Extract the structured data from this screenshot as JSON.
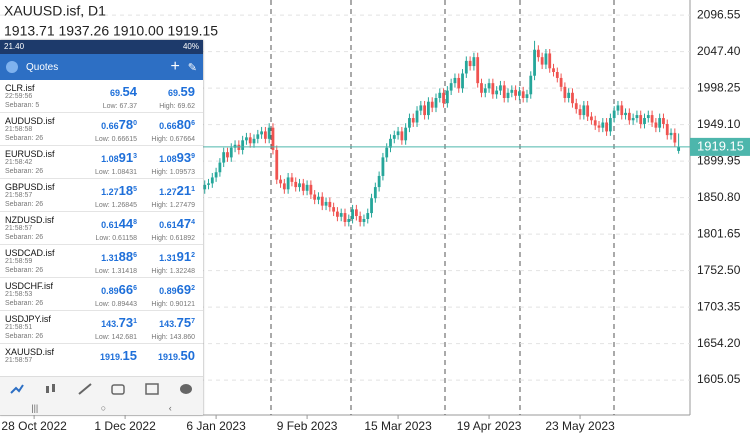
{
  "chart_data": {
    "type": "candlestick",
    "title": "XAUUSD.isf, D1",
    "ohlc_text": "1913.71 1937.26 1910.00 1919.15",
    "x": [
      44,
      45,
      46,
      47,
      48,
      49,
      50,
      51,
      52,
      53,
      54,
      55,
      56,
      57,
      58,
      59,
      60,
      61,
      62,
      63,
      64,
      65,
      66,
      67,
      68,
      69,
      70,
      71,
      72,
      73,
      74,
      75,
      76,
      77,
      78,
      79,
      80,
      81,
      82,
      83,
      84,
      85,
      86,
      87,
      88,
      89,
      90,
      91,
      92,
      93,
      94,
      95,
      96,
      97,
      98,
      99,
      100,
      101,
      102,
      103,
      104,
      105,
      106,
      107,
      108,
      109,
      110,
      111,
      112,
      113,
      114,
      115,
      116,
      117,
      118,
      119,
      120,
      121,
      122,
      123,
      124,
      125,
      126,
      127,
      128,
      129,
      130,
      131,
      132,
      133,
      134,
      135,
      136,
      137,
      138,
      139,
      140,
      141,
      142,
      143,
      144,
      145,
      146,
      147,
      148,
      149,
      150,
      151,
      152,
      153,
      154,
      155,
      156,
      157,
      158,
      159,
      160,
      161,
      162,
      163,
      164,
      165,
      166,
      167,
      168,
      169,
      170
    ],
    "open": [
      1858,
      1862,
      1868,
      1870,
      1878,
      1885,
      1898,
      1912,
      1905,
      1918,
      1922,
      1915,
      1928,
      1932,
      1924,
      1930,
      1936,
      1940,
      1930,
      1945,
      1915,
      1875,
      1870,
      1862,
      1878,
      1872,
      1865,
      1870,
      1860,
      1868,
      1855,
      1848,
      1852,
      1840,
      1845,
      1838,
      1832,
      1825,
      1830,
      1818,
      1822,
      1835,
      1826,
      1818,
      1822,
      1830,
      1850,
      1865,
      1880,
      1905,
      1918,
      1930,
      1935,
      1940,
      1928,
      1945,
      1958,
      1952,
      1968,
      1975,
      1962,
      1980,
      1972,
      1985,
      1992,
      1978,
      1995,
      2005,
      2012,
      1998,
      2018,
      2035,
      2028,
      2040,
      2005,
      1992,
      1998,
      2005,
      1990,
      1995,
      2002,
      1985,
      1992,
      1996,
      1988,
      1994,
      1985,
      1990,
      2015,
      2050,
      2040,
      2030,
      2045,
      2025,
      2020,
      2012,
      2000,
      1985,
      1992,
      1978,
      1970,
      1962,
      1975,
      1960,
      1955,
      1948,
      1945,
      1952,
      1940,
      1958,
      1968,
      1975,
      1962,
      1965,
      1955,
      1958,
      1962,
      1950,
      1958,
      1962,
      1952,
      1945,
      1958,
      1950,
      1935,
      1938,
      1913.71
    ],
    "high": [
      1868,
      1874,
      1876,
      1884,
      1891,
      1904,
      1918,
      1918,
      1924,
      1928,
      1928,
      1934,
      1938,
      1938,
      1936,
      1942,
      1946,
      1946,
      1951,
      1951,
      1921,
      1881,
      1876,
      1884,
      1884,
      1878,
      1876,
      1876,
      1874,
      1874,
      1861,
      1858,
      1858,
      1851,
      1851,
      1844,
      1838,
      1836,
      1836,
      1828,
      1841,
      1841,
      1832,
      1828,
      1836,
      1856,
      1871,
      1886,
      1911,
      1924,
      1936,
      1941,
      1946,
      1946,
      1951,
      1964,
      1964,
      1974,
      1981,
      1981,
      1986,
      1986,
      1991,
      1998,
      1998,
      2001,
      2011,
      2018,
      2018,
      2024,
      2041,
      2041,
      2046,
      2046,
      2011,
      2004,
      2011,
      2011,
      2001,
      2008,
      2008,
      1998,
      2002,
      2002,
      2000,
      2000,
      1996,
      2021,
      2062,
      2056,
      2046,
      2051,
      2051,
      2031,
      2026,
      2018,
      2006,
      1998,
      1998,
      1984,
      1976,
      1981,
      1981,
      1966,
      1961,
      1954,
      1958,
      1958,
      1964,
      1974,
      1981,
      1981,
      1971,
      1971,
      1964,
      1968,
      1968,
      1964,
      1968,
      1968,
      1958,
      1964,
      1964,
      1956,
      1944,
      1944,
      1937.26
    ],
    "low": [
      1852,
      1856,
      1862,
      1864,
      1872,
      1879,
      1892,
      1899,
      1899,
      1912,
      1909,
      1909,
      1922,
      1918,
      1918,
      1924,
      1930,
      1924,
      1924,
      1909,
      1869,
      1864,
      1856,
      1856,
      1866,
      1859,
      1859,
      1854,
      1854,
      1849,
      1842,
      1842,
      1834,
      1834,
      1832,
      1826,
      1819,
      1819,
      1812,
      1812,
      1816,
      1820,
      1812,
      1812,
      1816,
      1824,
      1844,
      1859,
      1874,
      1899,
      1912,
      1924,
      1929,
      1922,
      1922,
      1939,
      1946,
      1946,
      1962,
      1956,
      1956,
      1966,
      1966,
      1979,
      1972,
      1972,
      1989,
      1999,
      1992,
      1992,
      2012,
      2022,
      2022,
      1999,
      1986,
      1986,
      1992,
      1984,
      1984,
      1989,
      1979,
      1979,
      1986,
      1982,
      1982,
      1979,
      1979,
      1984,
      2009,
      2034,
      2024,
      2024,
      2019,
      2014,
      2006,
      1994,
      1979,
      1979,
      1972,
      1964,
      1956,
      1956,
      1954,
      1949,
      1942,
      1939,
      1939,
      1934,
      1934,
      1952,
      1962,
      1956,
      1956,
      1949,
      1949,
      1952,
      1944,
      1944,
      1952,
      1946,
      1939,
      1939,
      1944,
      1929,
      1929,
      1919,
      1910
    ],
    "close": [
      1862,
      1868,
      1870,
      1878,
      1885,
      1898,
      1912,
      1905,
      1918,
      1922,
      1915,
      1928,
      1932,
      1924,
      1930,
      1936,
      1940,
      1930,
      1945,
      1915,
      1875,
      1870,
      1862,
      1878,
      1872,
      1865,
      1870,
      1860,
      1868,
      1855,
      1848,
      1852,
      1840,
      1845,
      1838,
      1832,
      1825,
      1830,
      1818,
      1822,
      1835,
      1826,
      1818,
      1822,
      1830,
      1850,
      1865,
      1880,
      1905,
      1918,
      1930,
      1935,
      1940,
      1928,
      1945,
      1958,
      1952,
      1968,
      1975,
      1962,
      1980,
      1972,
      1985,
      1992,
      1978,
      1995,
      2005,
      2012,
      1998,
      2018,
      2035,
      2028,
      2040,
      2005,
      1992,
      1998,
      2005,
      1990,
      1995,
      2002,
      1985,
      1992,
      1996,
      1988,
      1994,
      1985,
      1990,
      2015,
      2050,
      2040,
      2030,
      2045,
      2025,
      2020,
      2012,
      2000,
      1985,
      1992,
      1978,
      1970,
      1962,
      1975,
      1960,
      1955,
      1948,
      1945,
      1952,
      1940,
      1958,
      1968,
      1975,
      1962,
      1965,
      1955,
      1958,
      1962,
      1950,
      1958,
      1962,
      1952,
      1945,
      1958,
      1950,
      1935,
      1938,
      1925,
      1919.15
    ],
    "up_color": "#26a69a",
    "down_color": "#ef5350",
    "last_price": 1919.15,
    "price_line_color": "#4db6ac",
    "grid": true,
    "xlim": [
      -9,
      173
    ],
    "xticks": [
      {
        "value": 0,
        "label": "28 Oct 2022"
      },
      {
        "value": 24,
        "label": "1 Dec 2022"
      },
      {
        "value": 48,
        "label": "6 Jan 2023"
      },
      {
        "value": 72,
        "label": "9 Feb 2023"
      },
      {
        "value": 96,
        "label": "15 Mar 2023"
      },
      {
        "value": 120,
        "label": "19 Apr 2023"
      },
      {
        "value": 144,
        "label": "23 May 2023"
      }
    ],
    "ylim": [
      1558,
      2117
    ],
    "yticks": [
      2096.55,
      {
        "value": 2047.4,
        "label": "2047.40"
      },
      1998.25,
      {
        "value": 1949.1,
        "label": "1949.10"
      },
      1899.95,
      {
        "value": 1850.8,
        "label": "1850.80"
      },
      1801.65,
      {
        "value": 1752.5,
        "label": "1752.50"
      },
      1703.35,
      {
        "value": 1654.2,
        "label": "1654.20"
      },
      1605.05
    ]
  },
  "phone": {
    "status_time": "21.40",
    "battery": "40%",
    "title": "Quotes",
    "rows": [
      {
        "symbol": "CLR.isf",
        "time": "22:59:56",
        "spread": "Sebaran: 5",
        "bid": [
          "69.",
          "54"
        ],
        "ask": [
          "69.",
          "59"
        ],
        "low": "Low: 67.37",
        "high": "High: 69.62"
      },
      {
        "symbol": "AUDUSD.isf",
        "time": "21:58:58",
        "spread": "Sebaran: 26",
        "bid": [
          "0.66",
          "78",
          "0"
        ],
        "ask": [
          "0.66",
          "80",
          "6"
        ],
        "low": "Low: 0.66615",
        "high": "High: 0.67664"
      },
      {
        "symbol": "EURUSD.isf",
        "time": "21:58:42",
        "spread": "Sebaran: 26",
        "bid": [
          "1.08",
          "91",
          "3"
        ],
        "ask": [
          "1.08",
          "93",
          "9"
        ],
        "low": "Low: 1.08431",
        "high": "High: 1.09573"
      },
      {
        "symbol": "GBPUSD.isf",
        "time": "21:58:57",
        "spread": "Sebaran: 26",
        "bid": [
          "1.27",
          "18",
          "5"
        ],
        "ask": [
          "1.27",
          "21",
          "1"
        ],
        "low": "Low: 1.26845",
        "high": "High: 1.27479"
      },
      {
        "symbol": "NZDUSD.isf",
        "time": "21:58:57",
        "spread": "Sebaran: 26",
        "bid": [
          "0.61",
          "44",
          "8"
        ],
        "ask": [
          "0.61",
          "47",
          "4"
        ],
        "low": "Low: 0.61158",
        "high": "High: 0.61892"
      },
      {
        "symbol": "USDCAD.isf",
        "time": "21:58:59",
        "spread": "Sebaran: 26",
        "bid": [
          "1.31",
          "88",
          "6"
        ],
        "ask": [
          "1.31",
          "91",
          "2"
        ],
        "low": "Low: 1.31418",
        "high": "High: 1.32248"
      },
      {
        "symbol": "USDCHF.isf",
        "time": "21:58:53",
        "spread": "Sebaran: 26",
        "bid": [
          "0.89",
          "66",
          "6"
        ],
        "ask": [
          "0.89",
          "69",
          "2"
        ],
        "low": "Low: 0.89443",
        "high": "High: 0.90121"
      },
      {
        "symbol": "USDJPY.isf",
        "time": "21:58:51",
        "spread": "Sebaran: 26",
        "bid": [
          "143.",
          "73",
          "1"
        ],
        "ask": [
          "143.",
          "75",
          "7"
        ],
        "low": "Low: 142.681",
        "high": "High: 143.860"
      },
      {
        "symbol": "XAUUSD.isf",
        "time": "21:58:57",
        "bid": [
          "1919.",
          "15"
        ],
        "ask": [
          "1919.",
          "50"
        ]
      }
    ]
  }
}
